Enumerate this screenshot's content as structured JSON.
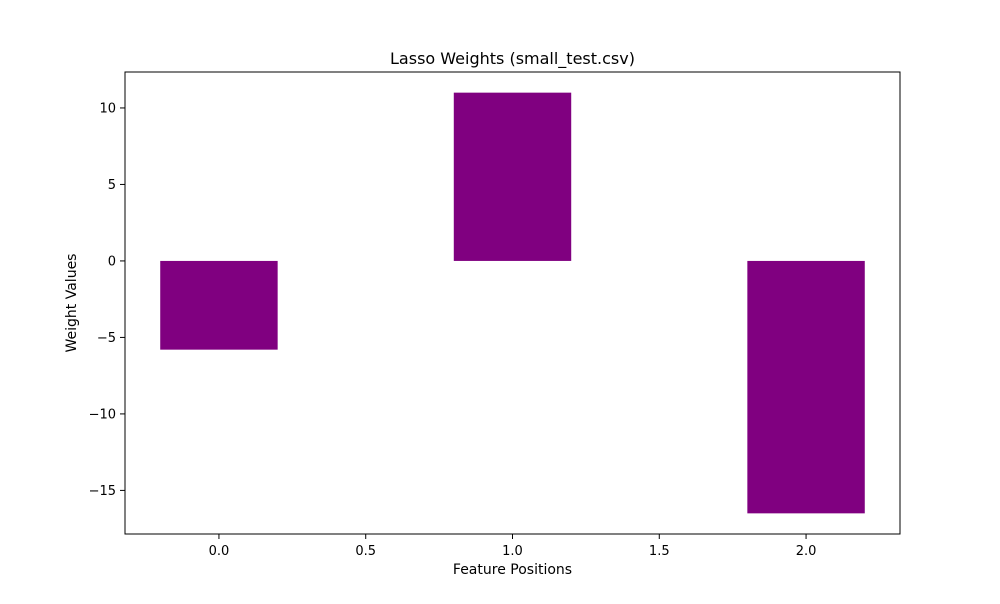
{
  "chart_data": {
    "type": "bar",
    "title": "Lasso Weights (small_test.csv)",
    "xlabel": "Feature Positions",
    "ylabel": "Weight Values",
    "x": [
      0,
      1,
      2
    ],
    "values": [
      -5.8,
      11.0,
      -16.5
    ],
    "bar_width": 0.4,
    "bar_color": "#800080",
    "xlim": [
      -0.32,
      2.32
    ],
    "ylim": [
      -17.85,
      12.35
    ],
    "xticks": [
      0.0,
      0.5,
      1.0,
      1.5,
      2.0
    ],
    "xtick_labels": [
      "0.0",
      "0.5",
      "1.0",
      "1.5",
      "2.0"
    ],
    "yticks": [
      -15,
      -10,
      -5,
      0,
      5,
      10
    ],
    "ytick_labels": [
      "−15",
      "−10",
      "−5",
      "0",
      "5",
      "10"
    ],
    "grid": false,
    "legend": "none"
  }
}
